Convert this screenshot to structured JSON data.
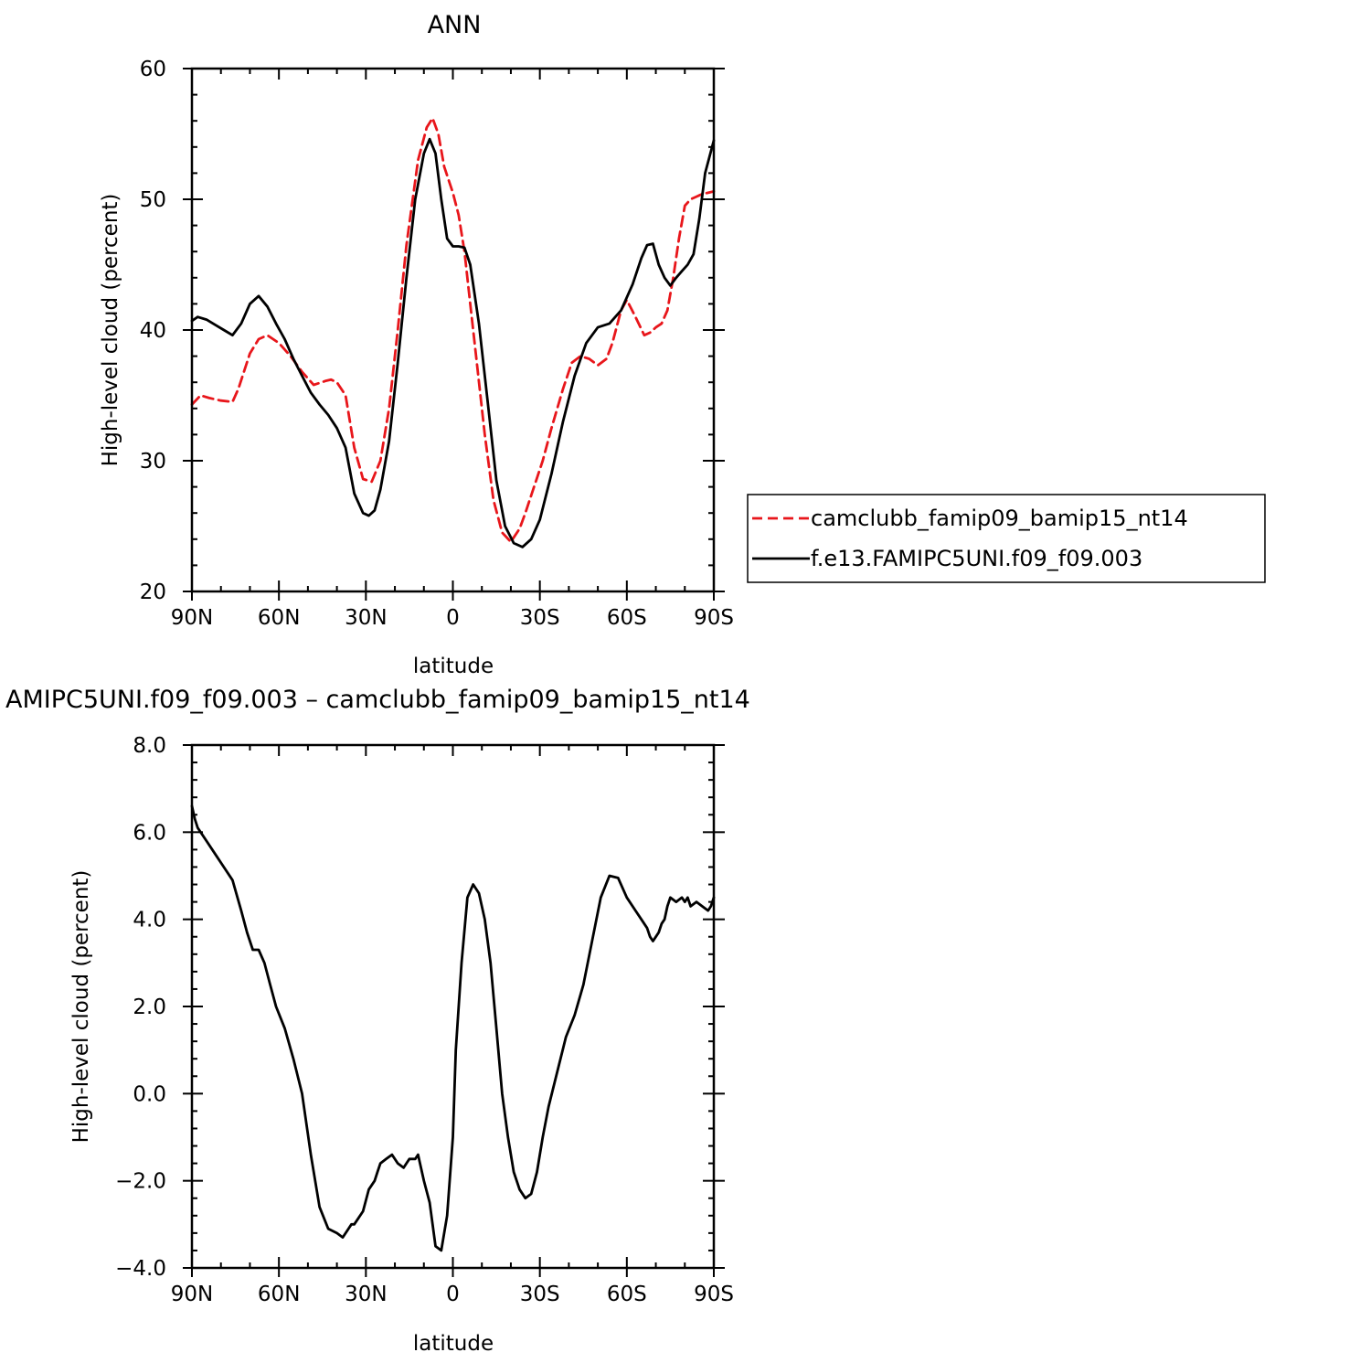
{
  "chart_data": [
    {
      "type": "line",
      "title": "ANN",
      "xlabel": "latitude",
      "ylabel": "High-level cloud (percent)",
      "xlim": [
        -90,
        90
      ],
      "ylim": [
        20,
        60
      ],
      "x_ticks": [
        -90,
        -60,
        -30,
        0,
        30,
        60,
        90
      ],
      "x_tick_labels": [
        "90N",
        "60N",
        "30N",
        "0",
        "30S",
        "60S",
        "90S"
      ],
      "y_ticks": [
        20,
        30,
        40,
        50,
        60
      ],
      "y_tick_labels": [
        "20",
        "30",
        "40",
        "50",
        "60"
      ],
      "legend_position": "right",
      "series": [
        {
          "name": "camclubb_famip09_bamip15_nt14",
          "color": "#e8161b",
          "dash": "dashed",
          "x": [
            -90,
            -87,
            -84,
            -80,
            -76,
            -74,
            -70,
            -67,
            -64,
            -60,
            -56,
            -52,
            -48,
            -44,
            -42,
            -40,
            -37,
            -34,
            -31,
            -28,
            -25,
            -22,
            -19,
            -16,
            -12,
            -9,
            -7,
            -5,
            -3,
            0,
            2,
            4,
            6,
            8,
            11,
            14,
            17,
            20,
            23,
            25,
            28,
            31,
            34,
            38,
            41,
            44,
            47,
            50,
            53,
            55,
            58,
            60,
            63,
            66,
            68,
            70,
            72,
            74,
            76,
            78,
            80,
            82,
            84,
            85,
            86,
            88,
            90
          ],
          "y": [
            34.3,
            35.0,
            34.8,
            34.6,
            34.5,
            35.5,
            38.2,
            39.3,
            39.6,
            39.0,
            38.0,
            36.8,
            35.8,
            36.1,
            36.2,
            36.0,
            35.0,
            31.0,
            28.6,
            28.4,
            30.0,
            34.0,
            40.0,
            46.5,
            53.0,
            55.5,
            56.2,
            55.0,
            52.5,
            50.5,
            48.8,
            46.0,
            42.0,
            38.0,
            32.0,
            27.0,
            24.5,
            23.8,
            24.8,
            26.0,
            28.0,
            30.0,
            32.5,
            35.5,
            37.5,
            38.0,
            37.8,
            37.3,
            37.8,
            39.0,
            41.5,
            42.3,
            41.0,
            39.6,
            39.8,
            40.2,
            40.5,
            41.5,
            44.0,
            47.0,
            49.5,
            50.0,
            50.2,
            50.3,
            50.4,
            50.5,
            50.6
          ]
        },
        {
          "name": "f.e13.FAMIPC5UNI.f09_f09.003",
          "color": "#000000",
          "dash": "solid",
          "x": [
            -90,
            -88,
            -85,
            -82,
            -79,
            -76,
            -73,
            -70,
            -67,
            -64,
            -61,
            -58,
            -55,
            -52,
            -49,
            -46,
            -43,
            -40,
            -37,
            -34,
            -31,
            -29,
            -27,
            -25,
            -22,
            -19,
            -16,
            -13,
            -10,
            -8,
            -6,
            -4,
            -2,
            0,
            2,
            4,
            6,
            9,
            12,
            15,
            18,
            21,
            24,
            27,
            30,
            34,
            38,
            42,
            46,
            50,
            54,
            58,
            62,
            65,
            67,
            69,
            71,
            73,
            75,
            77,
            79,
            81,
            83,
            85,
            87,
            90
          ],
          "y": [
            40.7,
            41.0,
            40.8,
            40.4,
            40.0,
            39.6,
            40.5,
            42.0,
            42.6,
            41.8,
            40.5,
            39.3,
            37.8,
            36.5,
            35.2,
            34.3,
            33.5,
            32.5,
            31.0,
            27.5,
            26.0,
            25.8,
            26.2,
            27.8,
            31.5,
            37.5,
            44.0,
            50.0,
            53.5,
            54.6,
            53.5,
            50.0,
            47.0,
            46.4,
            46.4,
            46.3,
            45.0,
            40.5,
            34.5,
            28.5,
            25.0,
            23.7,
            23.4,
            24.0,
            25.5,
            29.0,
            33.0,
            36.5,
            39.0,
            40.2,
            40.5,
            41.5,
            43.5,
            45.5,
            46.5,
            46.6,
            45.0,
            44.0,
            43.4,
            44.0,
            44.5,
            45.0,
            45.8,
            48.5,
            52.0,
            54.5
          ]
        }
      ]
    },
    {
      "type": "line",
      "title": "AMIPC5UNI.f09_f09.003 – camclubb_famip09_bamip15_nt14",
      "xlabel": "latitude",
      "ylabel": "High-level cloud (percent)",
      "xlim": [
        -90,
        90
      ],
      "ylim": [
        -4.0,
        8.0
      ],
      "x_ticks": [
        -90,
        -60,
        -30,
        0,
        30,
        60,
        90
      ],
      "x_tick_labels": [
        "90N",
        "60N",
        "30N",
        "0",
        "30S",
        "60S",
        "90S"
      ],
      "y_ticks": [
        -4,
        -2,
        0,
        2,
        4,
        6,
        8
      ],
      "y_tick_labels": [
        "−4.0",
        "−2.0",
        "0.0",
        "2.0",
        "4.0",
        "6.0",
        "8.0"
      ],
      "series": [
        {
          "color": "#000000",
          "dash": "solid",
          "x": [
            -90,
            -89,
            -88,
            -87,
            -85,
            -82,
            -79,
            -76,
            -73,
            -71,
            -69,
            -67,
            -65,
            -63,
            -61,
            -58,
            -55,
            -52,
            -49,
            -46,
            -43,
            -40,
            -38,
            -36,
            -35,
            -34,
            -33,
            -31,
            -29,
            -27,
            -26,
            -25,
            -23,
            -21,
            -19,
            -17,
            -16,
            -15,
            -14,
            -13,
            -12,
            -10,
            -8,
            -7,
            -6,
            -4,
            -2,
            0,
            1,
            3,
            5,
            7,
            9,
            11,
            13,
            15,
            17,
            19,
            21,
            23,
            25,
            27,
            29,
            31,
            33,
            36,
            39,
            42,
            45,
            48,
            51,
            54,
            57,
            60,
            63,
            65,
            67,
            68,
            69,
            70,
            71,
            72,
            73,
            74,
            75,
            77,
            79,
            80,
            81,
            82,
            84,
            86,
            88,
            89,
            90
          ],
          "y": [
            6.6,
            6.3,
            6.1,
            6.0,
            5.8,
            5.5,
            5.2,
            4.9,
            4.2,
            3.7,
            3.3,
            3.3,
            3.0,
            2.5,
            2.0,
            1.5,
            0.8,
            0.0,
            -1.4,
            -2.6,
            -3.1,
            -3.2,
            -3.3,
            -3.1,
            -3.0,
            -3.0,
            -2.9,
            -2.7,
            -2.2,
            -2.0,
            -1.8,
            -1.6,
            -1.5,
            -1.4,
            -1.6,
            -1.7,
            -1.6,
            -1.5,
            -1.5,
            -1.5,
            -1.4,
            -2.0,
            -2.5,
            -3.0,
            -3.5,
            -3.6,
            -2.8,
            -1.0,
            1.0,
            3.0,
            4.5,
            4.8,
            4.6,
            4.0,
            3.0,
            1.5,
            0.0,
            -1.0,
            -1.8,
            -2.2,
            -2.4,
            -2.3,
            -1.8,
            -1.0,
            -0.3,
            0.5,
            1.3,
            1.8,
            2.5,
            3.5,
            4.5,
            5.0,
            4.95,
            4.5,
            4.2,
            4.0,
            3.8,
            3.6,
            3.5,
            3.6,
            3.7,
            3.9,
            4.0,
            4.3,
            4.5,
            4.4,
            4.5,
            4.4,
            4.5,
            4.3,
            4.4,
            4.3,
            4.2,
            4.3,
            4.5
          ]
        }
      ]
    }
  ]
}
